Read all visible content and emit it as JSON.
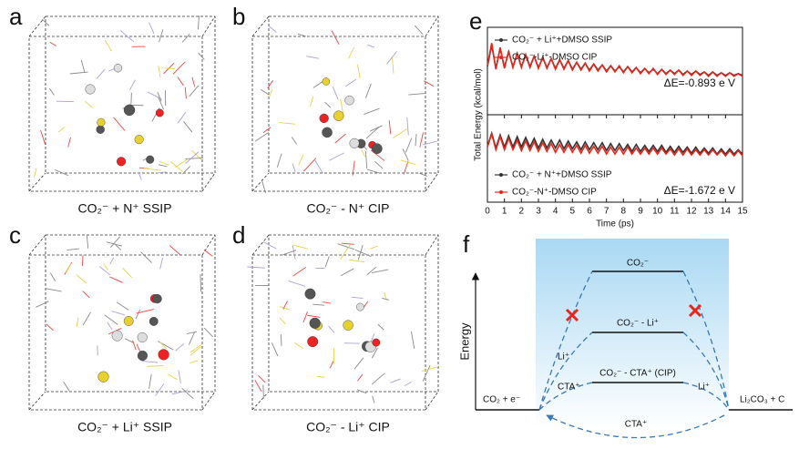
{
  "panels": [
    {
      "letter": "a",
      "caption": "CO₂⁻ + N⁺  SSIP"
    },
    {
      "letter": "b",
      "caption": "CO₂⁻ - N⁺  CIP"
    },
    {
      "letter": "c",
      "caption": "CO₂⁻ + Li⁺  SSIP"
    },
    {
      "letter": "d",
      "caption": "CO₂⁻ - Li⁺  CIP"
    }
  ],
  "panel_e": {
    "letter": "e"
  },
  "chart_data": [
    {
      "type": "line",
      "ylabel": "Total Energy (kcal/mol)",
      "annotation": "ΔE=-0.893 e V",
      "xlim": [
        0,
        15
      ],
      "ylim": [
        0,
        10
      ],
      "x": [
        0,
        0.25,
        0.5,
        0.75,
        1,
        1.25,
        1.5,
        1.75,
        2,
        2.25,
        2.5,
        2.75,
        3,
        3.25,
        3.5,
        3.75,
        4,
        4.25,
        4.5,
        4.75,
        5,
        5.25,
        5.5,
        5.75,
        6,
        6.25,
        6.5,
        6.75,
        7,
        7.25,
        7.5,
        7.75,
        8,
        8.25,
        8.5,
        8.75,
        9,
        9.25,
        9.5,
        9.75,
        10,
        10.25,
        10.5,
        10.75,
        11,
        11.25,
        11.5,
        11.75,
        12,
        12.25,
        12.5,
        12.75,
        13,
        13.25,
        13.5,
        13.75,
        14,
        14.25,
        14.5,
        14.75,
        15
      ],
      "series": [
        {
          "name": "CO₂⁻ + Li⁺+DMSO SSIP",
          "color": "#333333",
          "values": [
            5.5,
            8.0,
            5.3,
            7.6,
            5.4,
            7.2,
            5.5,
            7.0,
            5.5,
            6.8,
            5.5,
            6.7,
            5.4,
            6.5,
            5.4,
            6.4,
            5.3,
            6.3,
            5.3,
            6.2,
            5.2,
            6.0,
            5.2,
            5.9,
            5.1,
            5.8,
            5.1,
            5.7,
            5.0,
            5.6,
            5.0,
            5.5,
            4.9,
            5.5,
            4.9,
            5.4,
            4.8,
            5.3,
            4.8,
            5.2,
            4.7,
            5.2,
            4.7,
            5.1,
            4.7,
            5.1,
            4.6,
            5.0,
            4.6,
            5.0,
            4.6,
            4.9,
            4.5,
            4.9,
            4.5,
            4.8,
            4.5,
            4.8,
            4.5,
            4.7,
            4.5
          ]
        },
        {
          "name": "CO₂⁻-Li⁺-DMSO CIP",
          "color": "#e8261c",
          "values": [
            5.6,
            8.2,
            5.2,
            7.7,
            5.3,
            7.3,
            5.4,
            7.0,
            5.4,
            6.9,
            5.4,
            6.7,
            5.3,
            6.6,
            5.3,
            6.4,
            5.2,
            6.3,
            5.2,
            6.2,
            5.1,
            6.0,
            5.1,
            5.9,
            5.0,
            5.8,
            5.0,
            5.7,
            4.9,
            5.6,
            4.9,
            5.6,
            4.8,
            5.5,
            4.8,
            5.4,
            4.7,
            5.3,
            4.7,
            5.3,
            4.6,
            5.2,
            4.6,
            5.1,
            4.6,
            5.1,
            4.5,
            5.0,
            4.5,
            5.0,
            4.5,
            4.9,
            4.4,
            4.9,
            4.4,
            4.8,
            4.4,
            4.8,
            4.4,
            4.7,
            4.4
          ]
        }
      ]
    },
    {
      "type": "line",
      "xlabel": "Time (ps)",
      "annotation": "ΔE=-1.672 e V",
      "xlim": [
        0,
        15
      ],
      "ylim": [
        0,
        10
      ],
      "xticks": [
        0,
        1,
        2,
        3,
        4,
        5,
        6,
        7,
        8,
        9,
        10,
        11,
        12,
        13,
        14,
        15
      ],
      "x": [
        0,
        0.25,
        0.5,
        0.75,
        1,
        1.25,
        1.5,
        1.75,
        2,
        2.25,
        2.5,
        2.75,
        3,
        3.25,
        3.5,
        3.75,
        4,
        4.25,
        4.5,
        4.75,
        5,
        5.25,
        5.5,
        5.75,
        6,
        6.25,
        6.5,
        6.75,
        7,
        7.25,
        7.5,
        7.75,
        8,
        8.25,
        8.5,
        8.75,
        9,
        9.25,
        9.5,
        9.75,
        10,
        10.25,
        10.5,
        10.75,
        11,
        11.25,
        11.5,
        11.75,
        12,
        12.25,
        12.5,
        12.75,
        13,
        13.25,
        13.5,
        13.75,
        14,
        14.25,
        14.5,
        14.75,
        15
      ],
      "series": [
        {
          "name": "CO₂⁻ + N⁺+DMSO SSIP",
          "color": "#333333",
          "values": [
            6.4,
            7.9,
            6.2,
            7.7,
            6.3,
            7.6,
            6.3,
            7.5,
            6.3,
            7.4,
            6.3,
            7.3,
            6.2,
            7.2,
            6.2,
            7.1,
            6.2,
            7.1,
            6.1,
            7.0,
            6.1,
            6.9,
            6.0,
            6.9,
            6.0,
            6.8,
            6.0,
            6.8,
            5.9,
            6.7,
            5.9,
            6.7,
            5.9,
            6.6,
            5.8,
            6.6,
            5.8,
            6.5,
            5.8,
            6.5,
            5.8,
            6.5,
            5.7,
            6.4,
            5.7,
            6.4,
            5.7,
            6.3,
            5.6,
            6.3,
            5.6,
            6.2,
            5.6,
            6.2,
            5.5,
            6.1,
            5.5,
            6.1,
            5.5,
            6.0,
            5.5
          ]
        },
        {
          "name": "CO₂⁻-N⁺-DMSO CIP",
          "color": "#e8261c",
          "values": [
            6.3,
            7.8,
            6.0,
            7.5,
            6.0,
            7.3,
            6.0,
            7.1,
            5.9,
            7.0,
            5.9,
            6.9,
            5.8,
            6.8,
            5.8,
            6.7,
            5.7,
            6.6,
            5.7,
            6.6,
            5.7,
            6.5,
            5.6,
            6.5,
            5.6,
            6.4,
            5.6,
            6.4,
            5.5,
            6.3,
            5.5,
            6.3,
            5.5,
            6.3,
            5.5,
            6.2,
            5.5,
            6.2,
            5.5,
            6.2,
            5.5,
            6.2,
            5.5,
            6.1,
            5.4,
            6.1,
            5.4,
            6.1,
            5.4,
            6.0,
            5.4,
            6.0,
            5.4,
            6.0,
            5.4,
            5.9,
            5.3,
            5.9,
            5.3,
            5.9,
            5.3
          ]
        }
      ]
    }
  ],
  "panel_f": {
    "letter": "f",
    "axis_label": "Energy",
    "levels": [
      "CO₂⁻",
      "CO₂⁻ - Li⁺",
      "CO₂⁻ - CTA⁺ (CIP)"
    ],
    "start": "CO₂ + e⁻",
    "end": "Li₂CO₃ + C",
    "left_labels": [
      "Li⁺",
      "CTA⁺"
    ],
    "right_label": "Li⁺",
    "bottom_label": "CTA⁺"
  }
}
